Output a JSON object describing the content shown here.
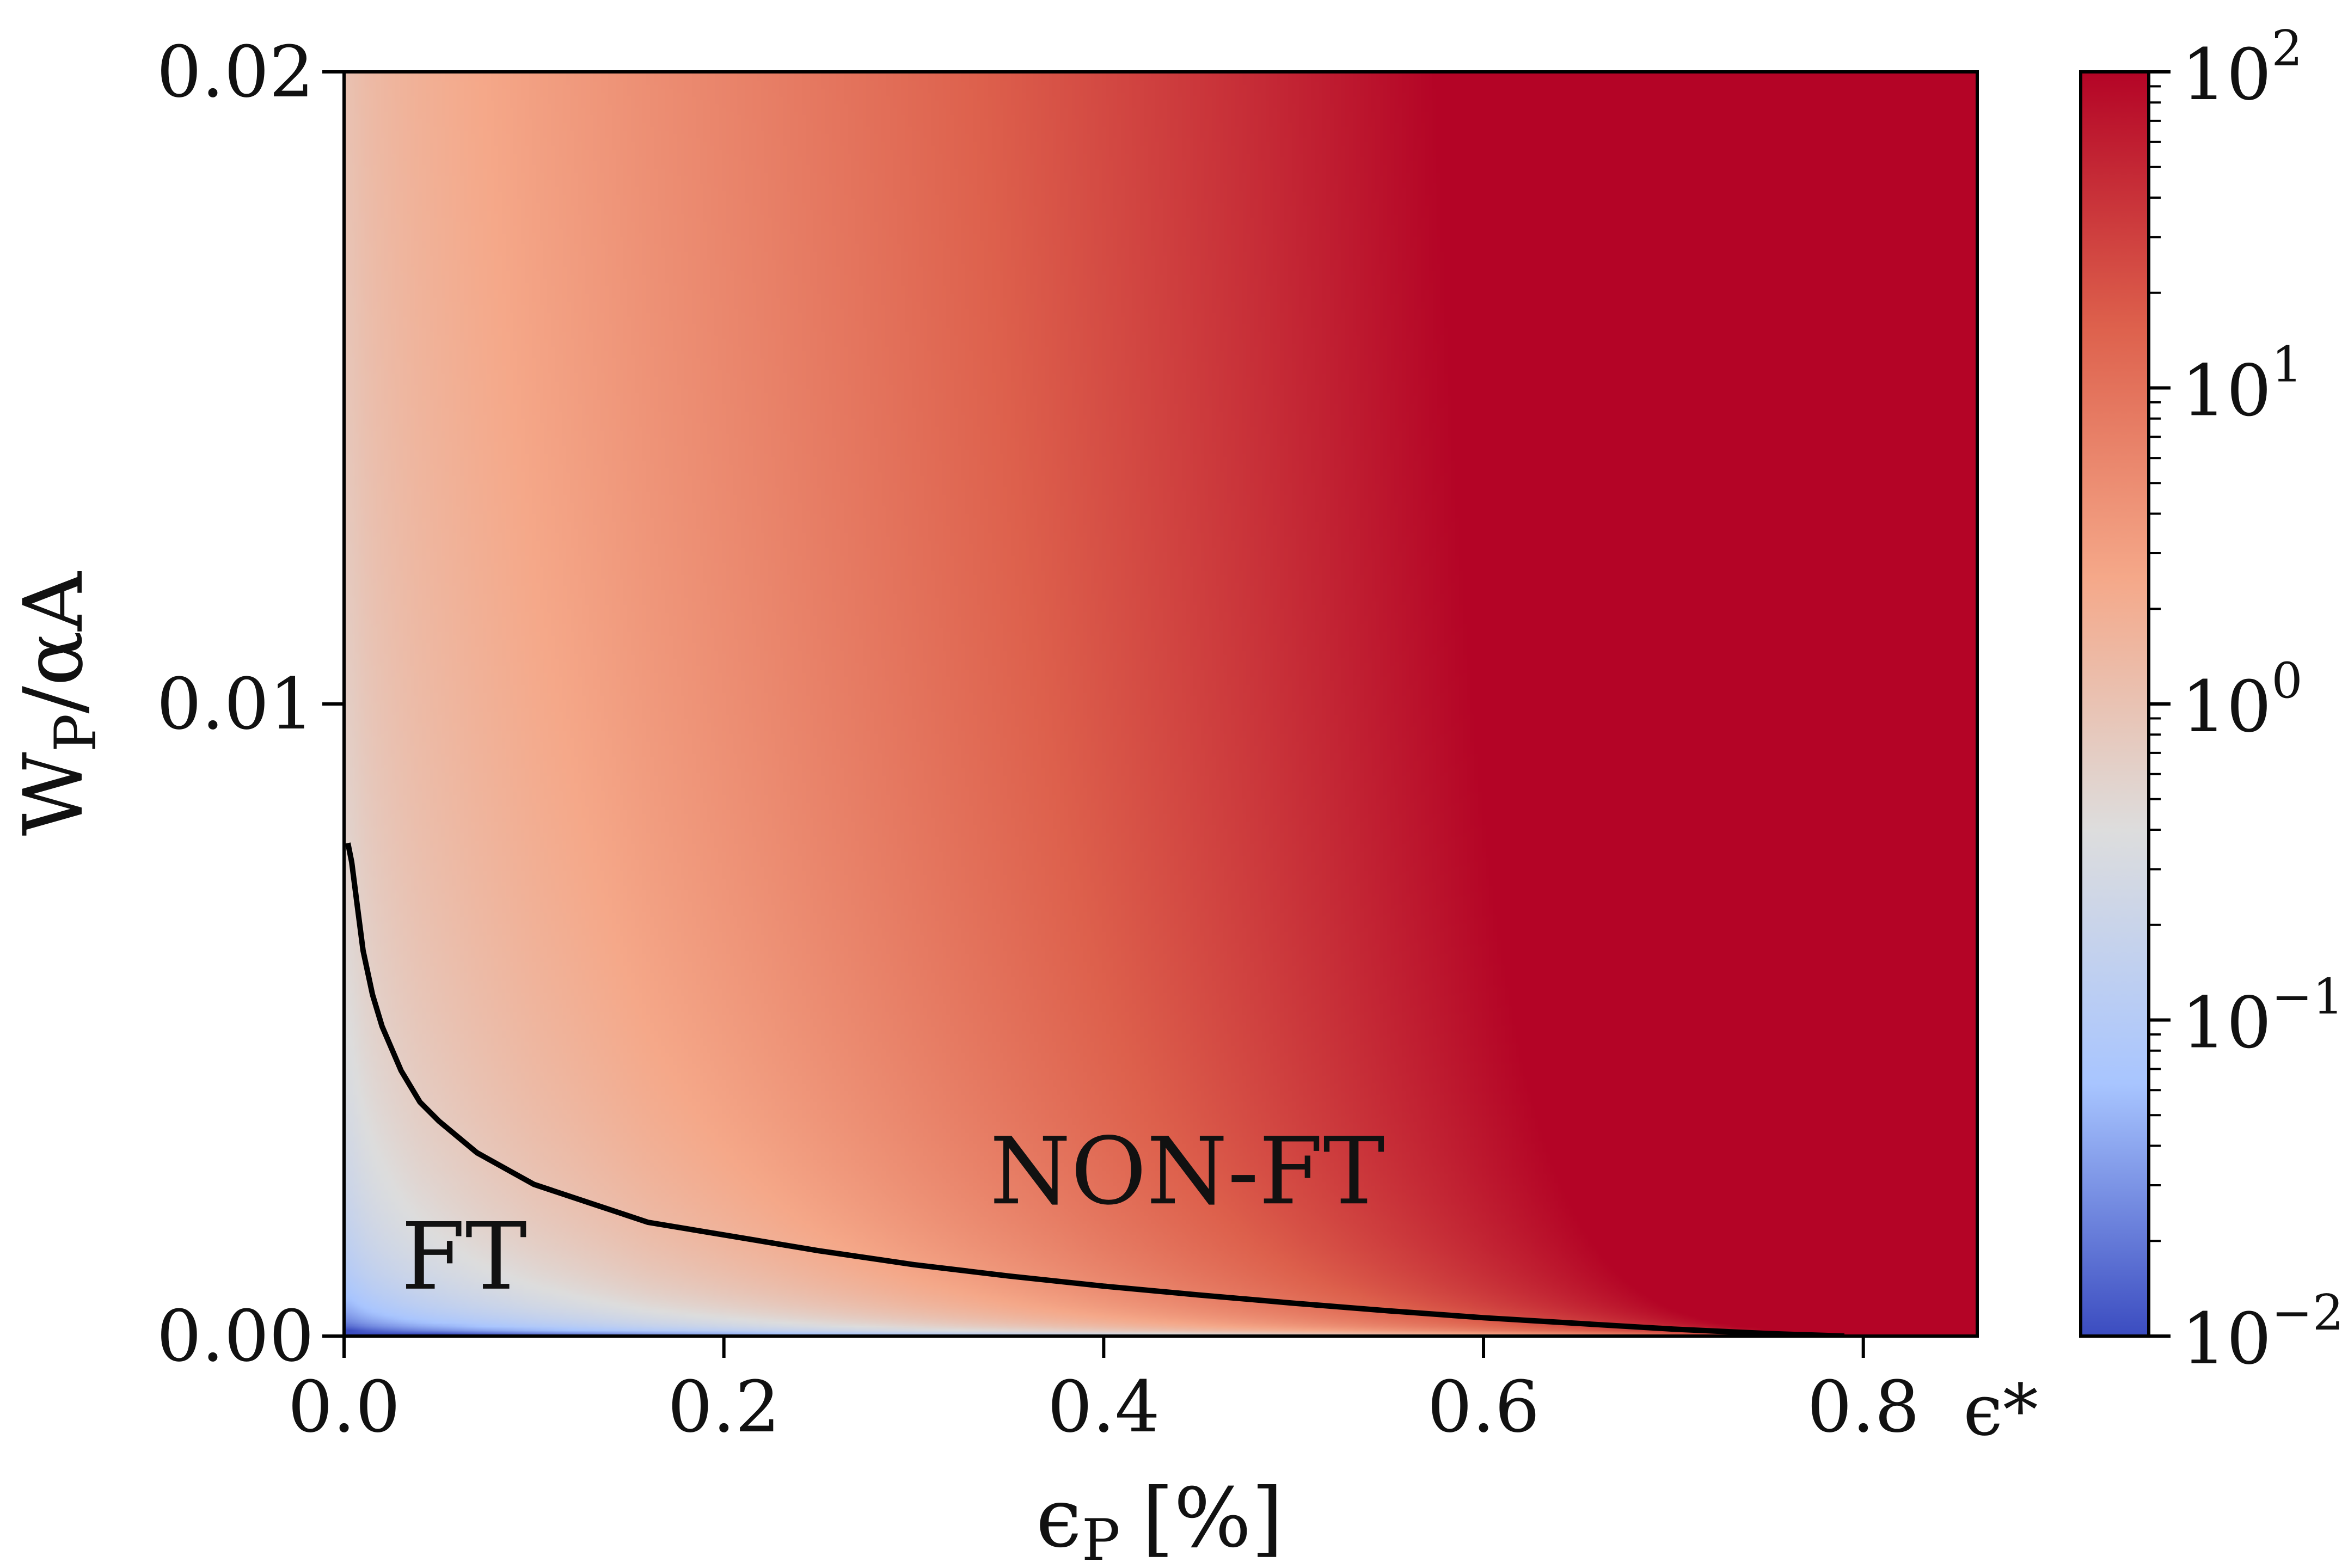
{
  "chart_data": {
    "type": "heatmap",
    "title": "",
    "xlabel": "ϵP [%]",
    "xlabel_main": "ϵ",
    "xlabel_sub": "P",
    "xlabel_unit": "[%]",
    "ylabel": "WP/αA",
    "ylabel_main": "W",
    "ylabel_sub": "P",
    "ylabel_rest": "/αA",
    "xlim": [
      0.0,
      0.86
    ],
    "ylim": [
      0.0,
      0.02
    ],
    "xticks": [
      0.0,
      0.2,
      0.4,
      0.6,
      0.8
    ],
    "xtick_labels": [
      "0.0",
      "0.2",
      "0.4",
      "0.6",
      "0.8"
    ],
    "x_end_label": "ϵ*",
    "yticks": [
      0.0,
      0.01,
      0.02
    ],
    "ytick_labels": [
      "0.00",
      "0.01",
      "0.02"
    ],
    "grid": false,
    "colorbar": {
      "scale": "log",
      "range": [
        0.01,
        100
      ],
      "tick_values": [
        0.01,
        0.1,
        1,
        10,
        100
      ],
      "tick_base": "10",
      "tick_exponents": [
        "−2",
        "−1",
        "0",
        "1",
        "2"
      ],
      "colormap": "coolwarm",
      "colors": [
        "#3b4cc0",
        "#a8c5ff",
        "#dddddd",
        "#f5a889",
        "#dd604c",
        "#b40426"
      ]
    },
    "boundary_curve": {
      "color": "#000000",
      "x": [
        0.002,
        0.004,
        0.007,
        0.01,
        0.015,
        0.02,
        0.03,
        0.04,
        0.05,
        0.07,
        0.1,
        0.13,
        0.16,
        0.2,
        0.25,
        0.3,
        0.35,
        0.4,
        0.45,
        0.5,
        0.55,
        0.6,
        0.65,
        0.7,
        0.75,
        0.79
      ],
      "y": [
        0.0078,
        0.0075,
        0.0068,
        0.0061,
        0.0054,
        0.0049,
        0.0042,
        0.0037,
        0.0034,
        0.0029,
        0.0024,
        0.0021,
        0.0018,
        0.0016,
        0.00135,
        0.00113,
        0.00095,
        0.00079,
        0.00065,
        0.00052,
        0.0004,
        0.00029,
        0.0002,
        0.00011,
        4e-05,
        0.0
      ]
    },
    "annotations": [
      {
        "text": "FT",
        "x": 0.03,
        "y": 0.00075
      },
      {
        "text": "NON-FT",
        "x": 0.34,
        "y": 0.0021
      }
    ]
  }
}
